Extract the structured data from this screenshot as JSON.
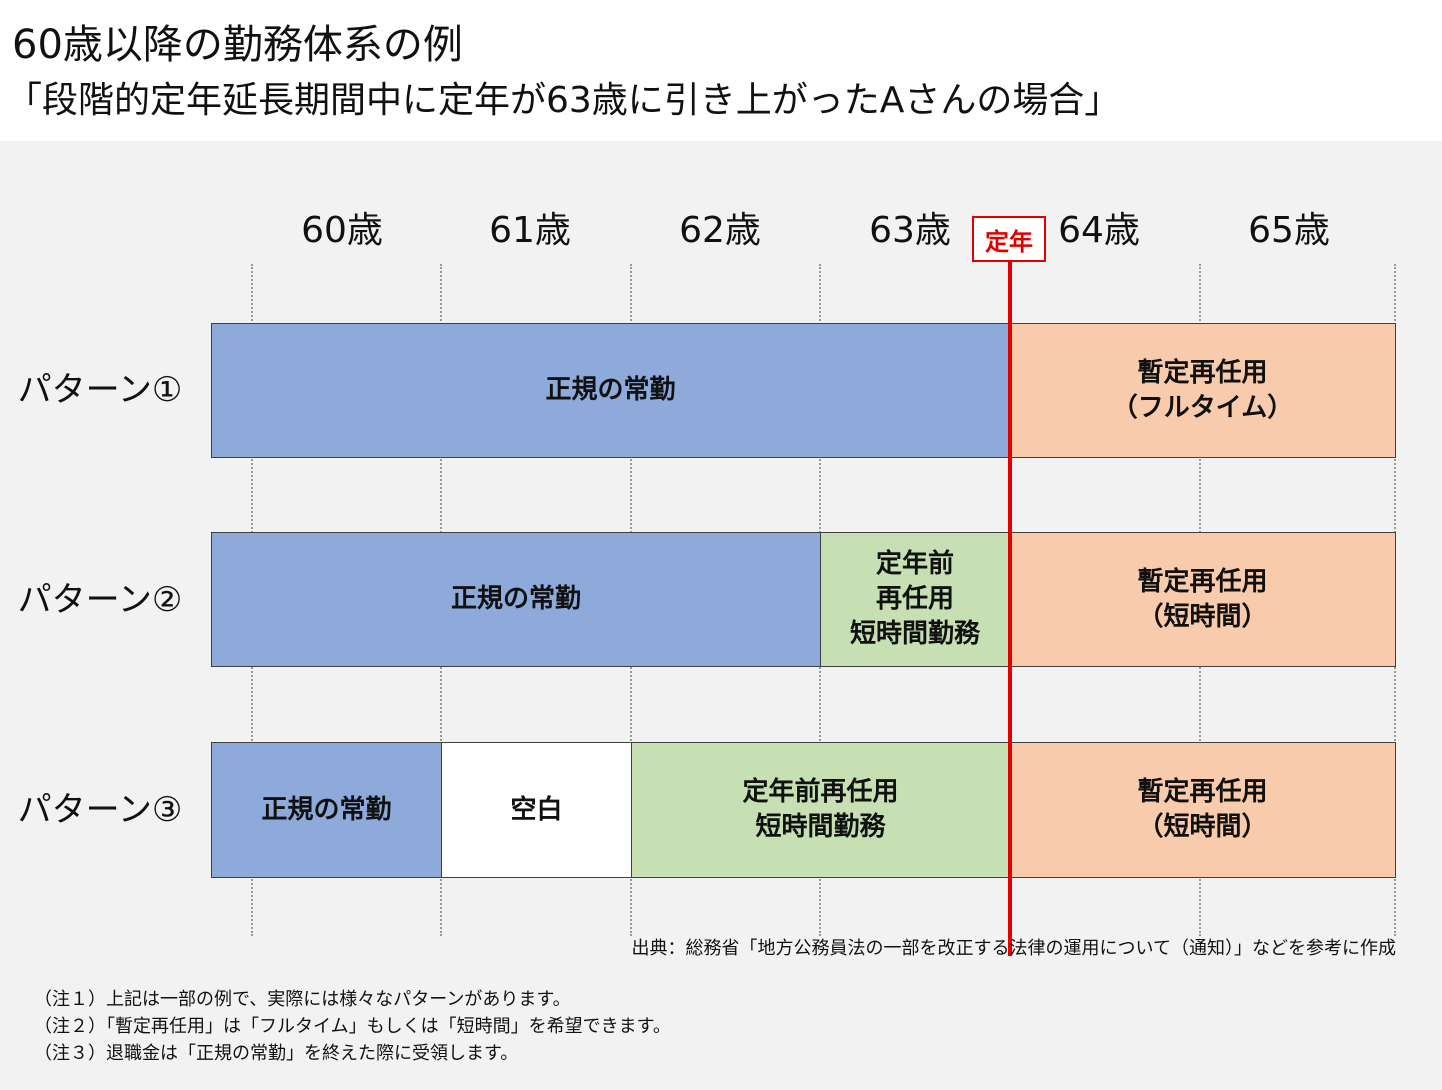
{
  "title": "60歳以降の勤務体系の例",
  "subtitle": "「段階的定年延長期間中に定年が63歳に引き上がったAさんの場合」",
  "ages": [
    "60歳",
    "61歳",
    "62歳",
    "63歳",
    "64歳",
    "65歳"
  ],
  "teinen_label": "定年",
  "patterns": [
    {
      "label": "パターン①",
      "segments": [
        {
          "text": "正規の常勤",
          "kind": "blue"
        },
        {
          "text": "暫定再任用\n（フルタイム）",
          "kind": "peach"
        }
      ]
    },
    {
      "label": "パターン②",
      "segments": [
        {
          "text": "正規の常勤",
          "kind": "blue"
        },
        {
          "text": "定年前\n再任用\n短時間勤務",
          "kind": "green"
        },
        {
          "text": "暫定再任用\n（短時間）",
          "kind": "peach"
        }
      ]
    },
    {
      "label": "パターン③",
      "segments": [
        {
          "text": "正規の常勤",
          "kind": "blue"
        },
        {
          "text": "空白",
          "kind": "white"
        },
        {
          "text": "定年前再任用\n短時間勤務",
          "kind": "green"
        },
        {
          "text": "暫定再任用\n（短時間）",
          "kind": "peach"
        }
      ]
    }
  ],
  "source": "出典：総務省「地方公務員法の一部を改正する法律の運用について（通知）」などを参考に作成",
  "notes": [
    "（注１）上記は一部の例で、実際には様々なパターンがあります。",
    "（注２）「暫定再任用」は「フルタイム」もしくは「短時間」を希望できます。",
    "（注３）退職金は「正規の常勤」を終えた際に受領します。"
  ],
  "colors": {
    "blue": "#8eaadb",
    "peach": "#f8cbad",
    "green": "#c6e0b4",
    "white": "#ffffff",
    "teinen": "#e00000",
    "panel": "#f2f2f2"
  }
}
